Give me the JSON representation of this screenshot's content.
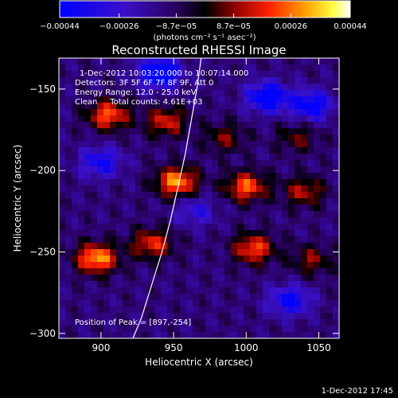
{
  "chart_data": {
    "type": "heatmap",
    "title": "Reconstructed RHESSI Image",
    "xlabel": "Heliocentric X (arcsec)",
    "ylabel": "Heliocentric Y (arcsec)",
    "xlim": [
      871,
      1064
    ],
    "ylim": [
      -303,
      -131
    ],
    "x_ticks": [
      900,
      950,
      1000,
      1050
    ],
    "y_ticks": [
      -150,
      -200,
      -250,
      -300
    ],
    "x_tick_labels": [
      "900",
      "950",
      "1000",
      "1050"
    ],
    "y_tick_labels": [
      "−150",
      "−200",
      "−250",
      "−300"
    ],
    "colorbar": {
      "range": [
        -0.00044,
        0.00044
      ],
      "tick_values": [
        -0.00044,
        -0.00026,
        -8.7e-05,
        8.7e-05,
        0.00026,
        0.00044
      ],
      "tick_labels": [
        "−0.00044",
        "−0.00026",
        "−8.7e−05",
        "8.7e−05",
        "0.00026",
        "0.00044"
      ],
      "unit_label": "(photons cm⁻² s⁻¹ asec⁻²)",
      "colormap": [
        "#0000ff",
        "#5a00a8",
        "#000000",
        "#8b0000",
        "#ff2000",
        "#ff9a00",
        "#ffff40",
        "#ffffff"
      ]
    },
    "annotations": [
      "1-Dec-2012 10:03:20.000 to 10:07:14.000",
      "Detectors: 3F 5F 6F 7F 8F 9F, Att 0",
      "Energy Range: 12.0 - 25.0 keV",
      "Clean     Total counts: 4.61E+03"
    ],
    "peak_label": "Position of Peak = [897,-254]",
    "limb_curve": [
      [
        922,
        -303
      ],
      [
        928,
        -290
      ],
      [
        935,
        -270
      ],
      [
        942,
        -250
      ],
      [
        948,
        -230
      ],
      [
        953,
        -210
      ],
      [
        958,
        -190
      ],
      [
        962,
        -170
      ],
      [
        966,
        -150
      ],
      [
        969,
        -131
      ]
    ],
    "hot_spots": [
      {
        "x": 905,
        "y": -166,
        "value": 0.00036
      },
      {
        "x": 945,
        "y": -170,
        "value": 0.00028
      },
      {
        "x": 952,
        "y": -207,
        "value": 0.00042
      },
      {
        "x": 1000,
        "y": -210,
        "value": 0.00036
      },
      {
        "x": 1040,
        "y": -213,
        "value": 0.00024
      },
      {
        "x": 897,
        "y": -254,
        "value": 0.00044
      },
      {
        "x": 935,
        "y": -245,
        "value": 0.0003
      },
      {
        "x": 1005,
        "y": -248,
        "value": 0.00034
      },
      {
        "x": 1045,
        "y": -255,
        "value": 0.0002
      },
      {
        "x": 985,
        "y": -180,
        "value": 0.00018
      },
      {
        "x": 1035,
        "y": -180,
        "value": 0.00016
      }
    ],
    "cold_spots": [
      {
        "x": 940,
        "y": -140,
        "value": -0.00044
      },
      {
        "x": 1015,
        "y": -155,
        "value": -0.0004
      },
      {
        "x": 1045,
        "y": -160,
        "value": -0.00034
      },
      {
        "x": 900,
        "y": -195,
        "value": -0.00028
      },
      {
        "x": 1030,
        "y": -280,
        "value": -0.0003
      },
      {
        "x": 965,
        "y": -225,
        "value": -0.00018
      }
    ]
  },
  "footer": {
    "timestamp": "1-Dec-2012 17:45"
  }
}
